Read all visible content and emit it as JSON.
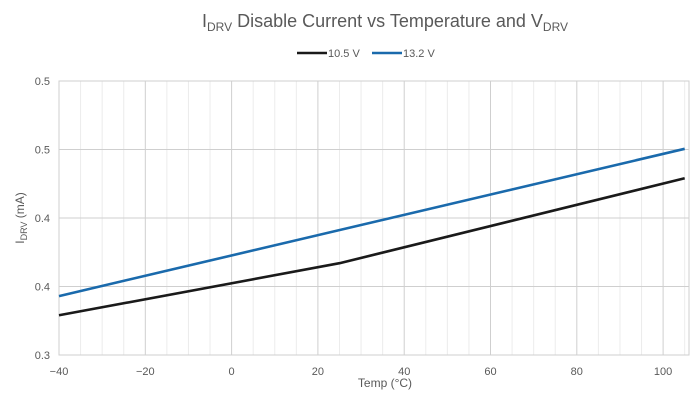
{
  "chart_data": {
    "type": "line",
    "title": {
      "main": "I",
      "sub1": "DRV",
      "mid": " Disable Current vs Temperature and V",
      "sub2": "DRV"
    },
    "xlabel": "Temp (°C)",
    "ylabel": {
      "main": "I",
      "sub": "DRV",
      "rest": " (mA)"
    },
    "xlim": [
      -40,
      106
    ],
    "ylim": [
      0.3,
      0.5
    ],
    "x_major_ticks": [
      -40,
      -20,
      0,
      20,
      40,
      60,
      80,
      100
    ],
    "x_tick_labels": [
      "−40",
      "−20",
      "0",
      "20",
      "40",
      "60",
      "80",
      "100"
    ],
    "x_minor_step": 5,
    "y_major_ticks": [
      0.3,
      0.35,
      0.4,
      0.45,
      0.5
    ],
    "y_tick_labels": [
      "0.3",
      "0.4",
      "0.4",
      "0.5",
      "0.5"
    ],
    "grid": true,
    "legend_position": "top-center",
    "series": [
      {
        "name": "10.5 V",
        "color": "#1a1a1a",
        "x": [
          -40,
          25,
          105
        ],
        "y": [
          0.329,
          0.367,
          0.429
        ]
      },
      {
        "name": "13.2 V",
        "color": "#1a6aac",
        "x": [
          -40,
          105
        ],
        "y": [
          0.343,
          0.4505
        ]
      }
    ]
  }
}
